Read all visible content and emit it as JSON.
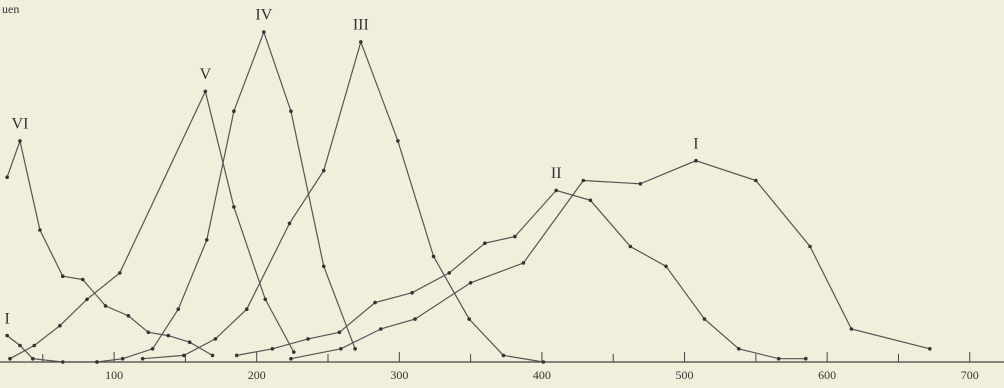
{
  "chart_data": {
    "type": "line",
    "ylabel": "uen",
    "xlim": [
      20,
      724
    ],
    "ylim": [
      0,
      110
    ],
    "xticks": [
      100,
      200,
      300,
      400,
      500,
      600,
      700
    ],
    "minor_xticks": [
      50,
      150,
      250,
      350,
      450,
      550,
      650
    ],
    "color": "#555555",
    "series": [
      {
        "name": "VI",
        "x": [
          25,
          34,
          48,
          64,
          78,
          94,
          110,
          124,
          138,
          153,
          169
        ],
        "values": [
          56,
          67,
          40,
          26,
          25,
          17,
          14,
          9,
          8,
          6,
          2
        ]
      },
      {
        "name": "I",
        "x": [
          25,
          34,
          43,
          64,
          88
        ],
        "values": [
          8,
          5,
          1,
          0,
          0
        ]
      },
      {
        "name": "V",
        "x": [
          27,
          44,
          62,
          81,
          104,
          164,
          184,
          206,
          226
        ],
        "values": [
          1,
          5,
          11,
          19,
          27,
          82,
          47,
          19,
          3
        ]
      },
      {
        "name": "IV",
        "x": [
          88,
          106,
          127,
          145,
          165,
          184,
          205,
          224,
          247,
          269
        ],
        "values": [
          0,
          1,
          4,
          16,
          37,
          76,
          100,
          76,
          29,
          4
        ]
      },
      {
        "name": "III",
        "x": [
          120,
          149,
          171,
          193,
          223,
          247,
          273,
          299,
          324,
          349,
          373,
          401
        ],
        "values": [
          1,
          2,
          7,
          16,
          42,
          58,
          97,
          67,
          32,
          13,
          2,
          0
        ]
      },
      {
        "name": "II",
        "x": [
          186,
          211,
          236,
          258,
          283,
          309,
          335,
          360,
          381,
          410,
          434,
          462,
          487,
          514,
          538,
          566,
          585
        ],
        "values": [
          2,
          4,
          7,
          9,
          18,
          21,
          27,
          36,
          38,
          52,
          49,
          35,
          29,
          13,
          4,
          1,
          1
        ]
      },
      {
        "name": "I",
        "x": [
          224,
          259,
          287,
          311,
          350,
          387,
          429,
          469,
          508,
          550,
          588,
          617,
          672
        ],
        "values": [
          1,
          4,
          10,
          13,
          24,
          30,
          55,
          54,
          61,
          55,
          35,
          10,
          4
        ]
      }
    ]
  }
}
